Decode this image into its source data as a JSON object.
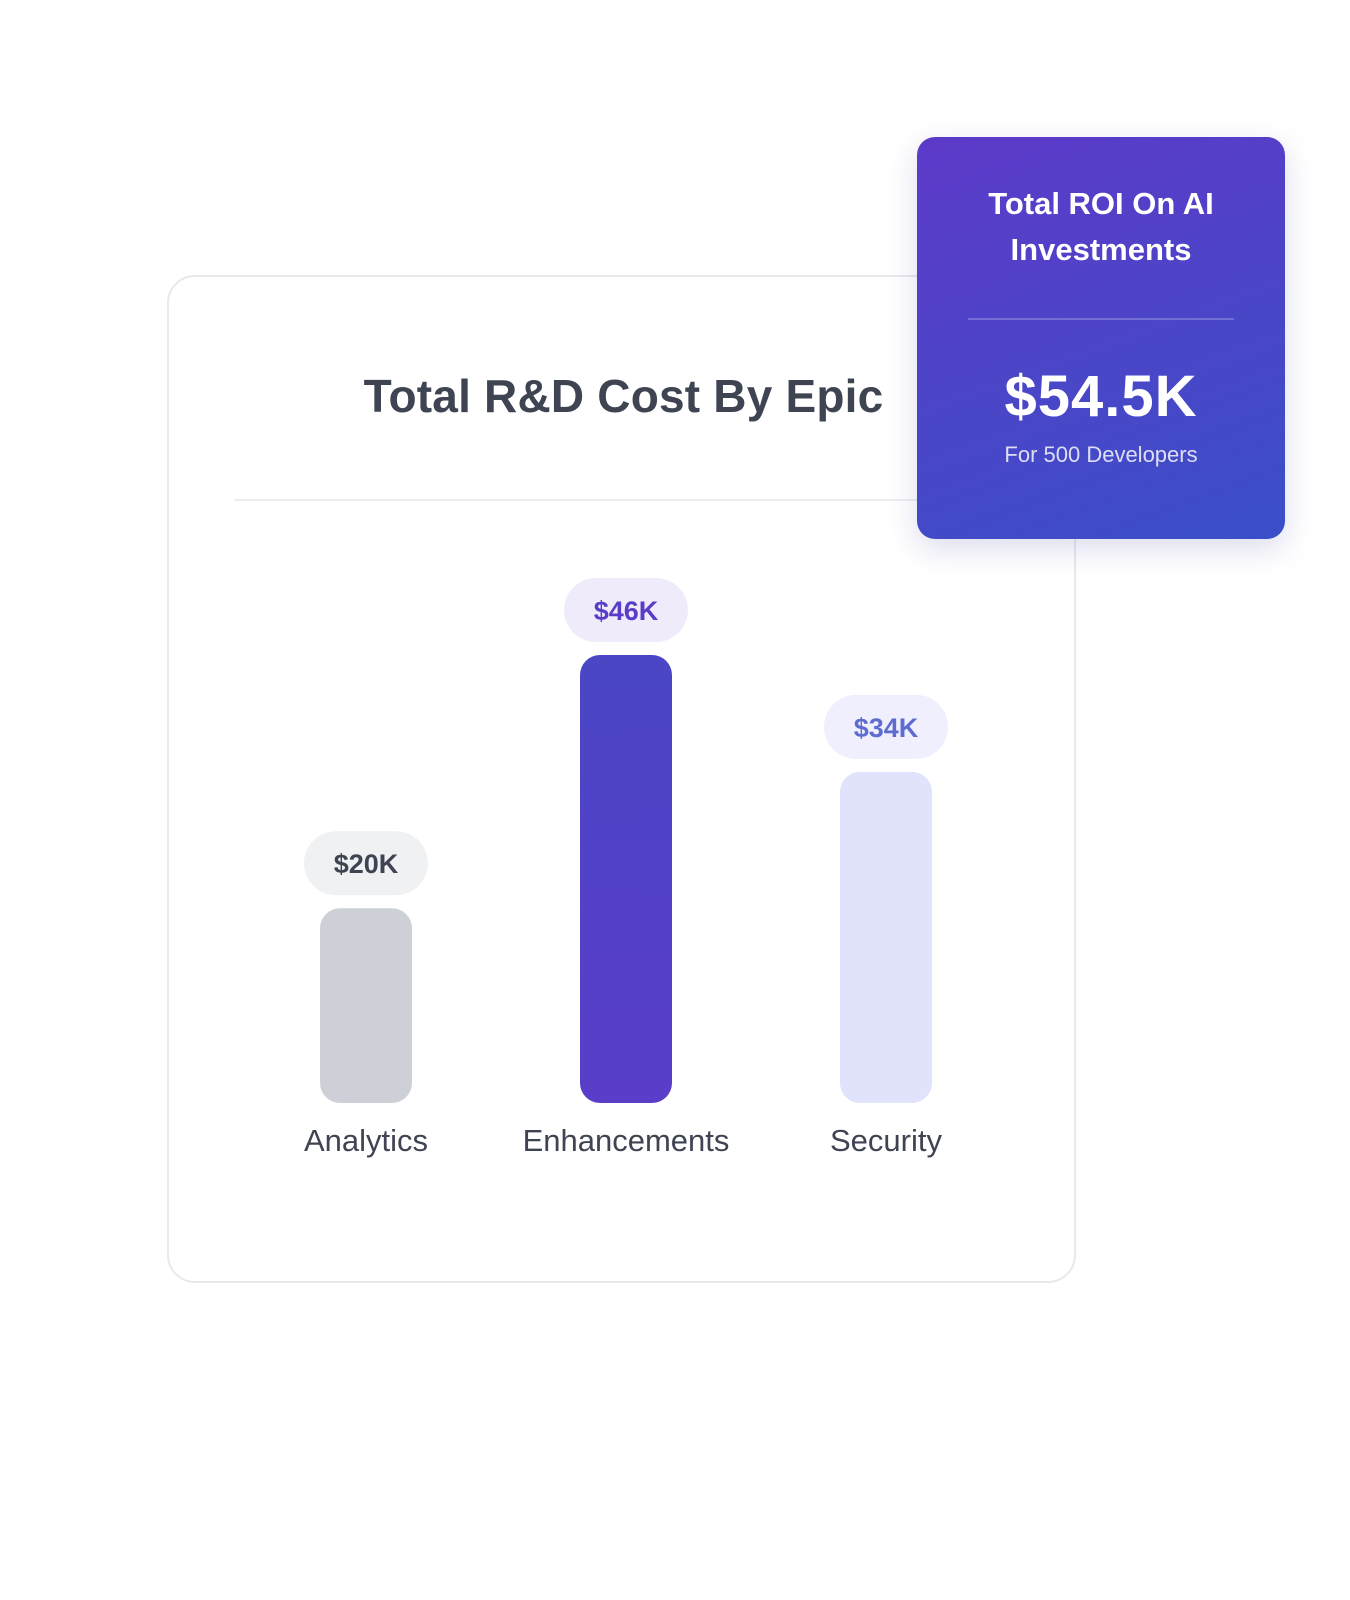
{
  "chart_data": {
    "type": "bar",
    "title": "Total R&D Cost By Epic",
    "categories": [
      "Analytics",
      "Enhancements",
      "Security"
    ],
    "values": [
      20,
      46,
      34
    ],
    "value_labels": [
      "$20K",
      "$46K",
      "$34K"
    ],
    "units": "$K",
    "ylim": [
      0,
      46
    ],
    "grid": false,
    "bar_colors": [
      "#cdd1d7",
      "#5a3dc8",
      "#e1e2fb"
    ],
    "bar_gradient_top": [
      "#cdd1d7",
      "#4a46c6",
      "#e1e2fb"
    ],
    "label_bg_colors": [
      "#f0f1f3",
      "#efebfb",
      "#efeffd"
    ],
    "label_text_colors": [
      "#3f4452",
      "#5a3cc8",
      "#5e6cd0"
    ],
    "category_text_color": "#3f4452"
  },
  "roi_card": {
    "title": "Total ROI On AI Investments",
    "value": "$54.5K",
    "subtitle": "For 500 Developers"
  }
}
